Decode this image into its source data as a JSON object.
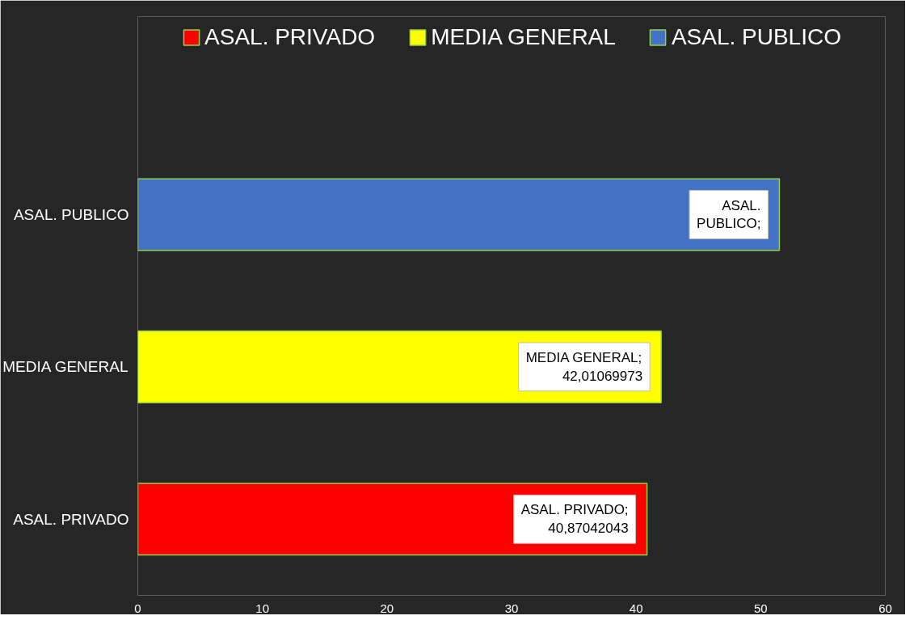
{
  "chart_data": {
    "type": "bar",
    "orientation": "horizontal",
    "categories": [
      "ASAL. PUBLICO",
      "MEDIA GENERAL",
      "ASAL. PRIVADO"
    ],
    "series": [
      {
        "name": "ASAL. PRIVADO",
        "color": "#ff0000",
        "values": [
          null,
          null,
          40.87042043
        ],
        "value_labels": [
          null,
          null,
          "ASAL. PRIVADO;\n40,87042043"
        ]
      },
      {
        "name": "MEDIA GENERAL",
        "color": "#ffff00",
        "values": [
          null,
          42.01069973,
          null
        ],
        "value_labels": [
          null,
          "MEDIA GENERAL;\n42,01069973",
          null
        ]
      },
      {
        "name": "ASAL. PUBLICO",
        "color": "#4472c4",
        "values": [
          51.5,
          null,
          null
        ],
        "value_labels": [
          "ASAL.\nPUBLICO;",
          null,
          null
        ]
      }
    ],
    "xlim": [
      0,
      60
    ],
    "xticks": [
      0,
      10,
      20,
      30,
      40,
      50,
      60
    ],
    "grid": false,
    "legend": "top"
  }
}
